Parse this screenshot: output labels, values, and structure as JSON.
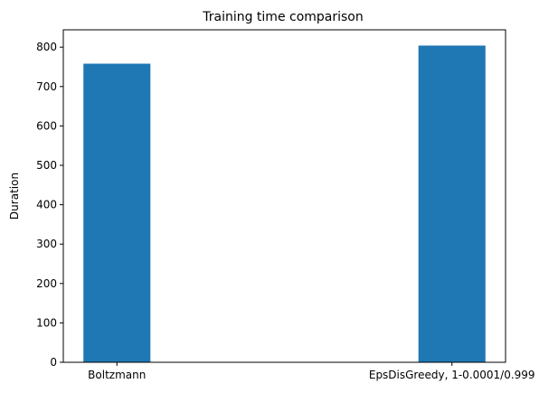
{
  "chart_data": {
    "type": "bar",
    "title": "Training time comparison",
    "xlabel": "",
    "ylabel": "Duration",
    "categories": [
      "Boltzmann",
      "EpsDisGreedy, 1-0.0001/0.999"
    ],
    "values": [
      758,
      804
    ],
    "ylim": [
      0,
      844
    ],
    "yticks": [
      0,
      100,
      200,
      300,
      400,
      500,
      600,
      700,
      800
    ],
    "bar_color": "#1f77b4",
    "grid": false,
    "legend": "none"
  }
}
